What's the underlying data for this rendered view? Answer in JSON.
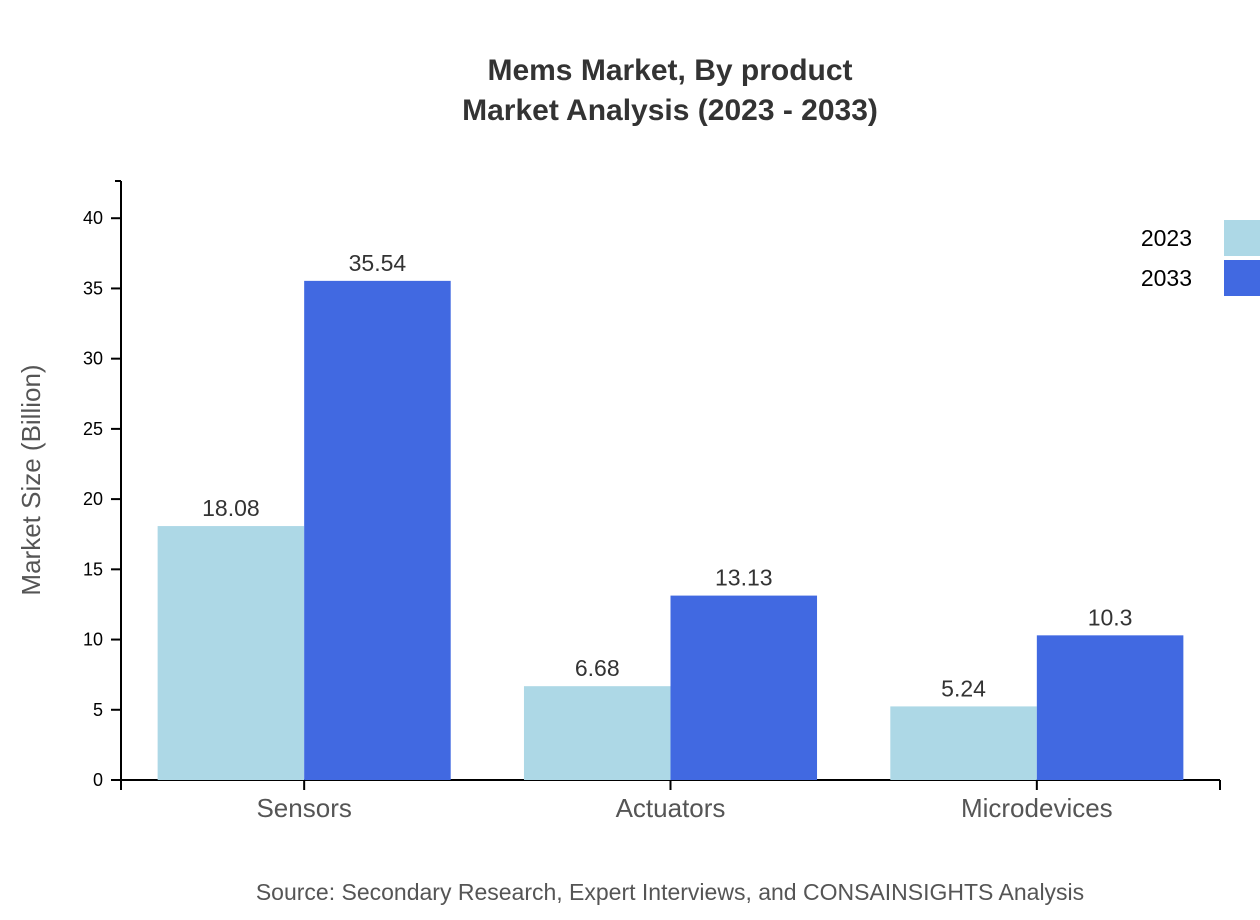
{
  "chart_data": {
    "type": "bar",
    "title": "Mems Market, By product",
    "subtitle": "Market Analysis (2023 - 2033)",
    "xlabel": "",
    "ylabel": "Market Size (Billion)",
    "categories": [
      "Sensors",
      "Actuators",
      "Microdevices"
    ],
    "series": [
      {
        "name": "2023",
        "color": "#add8e6",
        "values": [
          18.08,
          6.68,
          5.24
        ]
      },
      {
        "name": "2033",
        "color": "#4169e1",
        "values": [
          35.54,
          13.13,
          10.3
        ]
      }
    ],
    "ylim": [
      0,
      42.65
    ],
    "yticks": [
      0,
      5,
      10,
      15,
      20,
      25,
      30,
      35,
      40
    ],
    "grid": false,
    "legend_position": "top-right",
    "source": "Source: Secondary Research, Expert Interviews, and CONSAINSIGHTS Analysis"
  }
}
